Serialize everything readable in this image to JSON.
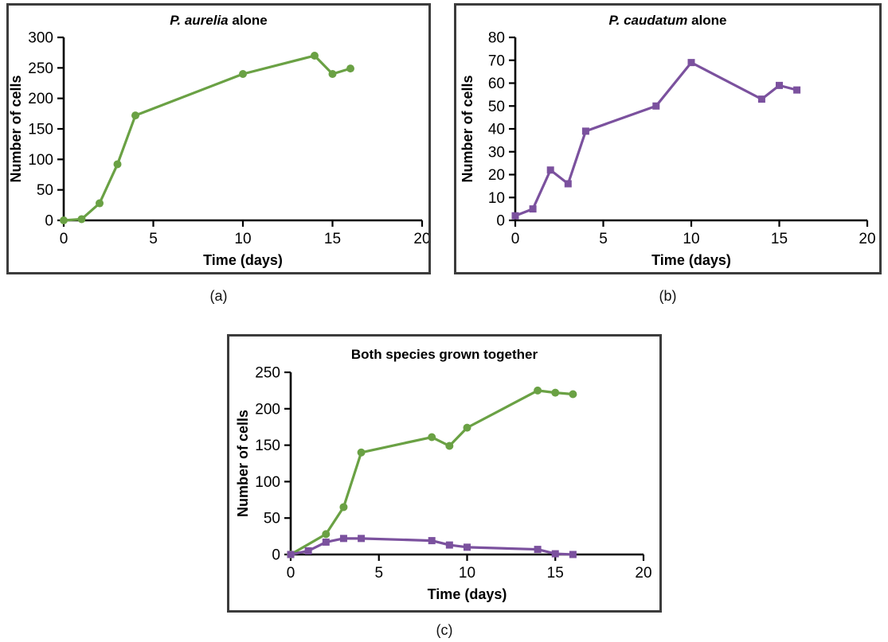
{
  "figure_labels": {
    "a": "(a)",
    "b": "(b)",
    "c": "(c)"
  },
  "colors": {
    "p_aurelia_green": "#6AA144",
    "p_caudatum_purple": "#7B519E",
    "axis_black": "#000000",
    "panel_border_gray": "#3c3c3c"
  },
  "chart_data": [
    {
      "id": "p-aurelia-alone",
      "type": "line",
      "title_italic": "P. aurelia",
      "title_rest": " alone",
      "xlabel": "Time (days)",
      "ylabel": "Number of cells",
      "xlim": [
        0,
        20
      ],
      "ylim": [
        0,
        300
      ],
      "xticks": [
        0,
        5,
        10,
        15,
        20
      ],
      "yticks": [
        0,
        50,
        100,
        150,
        200,
        250,
        300
      ],
      "grid": false,
      "legend": "none",
      "series": [
        {
          "name": "P. aurelia",
          "color": "#6AA144",
          "marker": "circle",
          "x": [
            0,
            1,
            2,
            3,
            4,
            10,
            14,
            15,
            16
          ],
          "y": [
            0,
            2,
            28,
            92,
            172,
            240,
            270,
            240,
            249
          ]
        }
      ]
    },
    {
      "id": "p-caudatum-alone",
      "type": "line",
      "title_italic": "P. caudatum",
      "title_rest": " alone",
      "xlabel": "Time (days)",
      "ylabel": "Number of cells",
      "xlim": [
        0,
        20
      ],
      "ylim": [
        0,
        80
      ],
      "xticks": [
        0,
        5,
        10,
        15,
        20
      ],
      "yticks": [
        0,
        10,
        20,
        30,
        40,
        50,
        60,
        70,
        80
      ],
      "grid": false,
      "legend": "none",
      "series": [
        {
          "name": "P. caudatum",
          "color": "#7B519E",
          "marker": "square",
          "x": [
            0,
            1,
            2,
            3,
            4,
            8,
            10,
            14,
            15,
            16
          ],
          "y": [
            2,
            5,
            22,
            16,
            39,
            50,
            69,
            53,
            59,
            57
          ]
        }
      ]
    },
    {
      "id": "both-species-grown-together",
      "type": "line",
      "title_italic": "",
      "title_rest": "Both species grown together",
      "xlabel": "Time (days)",
      "ylabel": "Number of cells",
      "xlim": [
        0,
        20
      ],
      "ylim": [
        0,
        250
      ],
      "xticks": [
        0,
        5,
        10,
        15,
        20
      ],
      "yticks": [
        0,
        50,
        100,
        150,
        200,
        250
      ],
      "grid": false,
      "legend": "none",
      "series": [
        {
          "name": "P. aurelia",
          "color": "#6AA144",
          "marker": "circle",
          "x": [
            0,
            2,
            3,
            4,
            8,
            9,
            10,
            14,
            15,
            16
          ],
          "y": [
            0,
            28,
            65,
            140,
            161,
            149,
            174,
            225,
            222,
            220
          ]
        },
        {
          "name": "P. caudatum",
          "color": "#7B519E",
          "marker": "square",
          "x": [
            0,
            1,
            2,
            3,
            4,
            8,
            9,
            10,
            14,
            15,
            16
          ],
          "y": [
            0,
            5,
            17,
            22,
            22,
            19,
            13,
            10,
            7,
            1,
            0
          ]
        }
      ]
    }
  ]
}
